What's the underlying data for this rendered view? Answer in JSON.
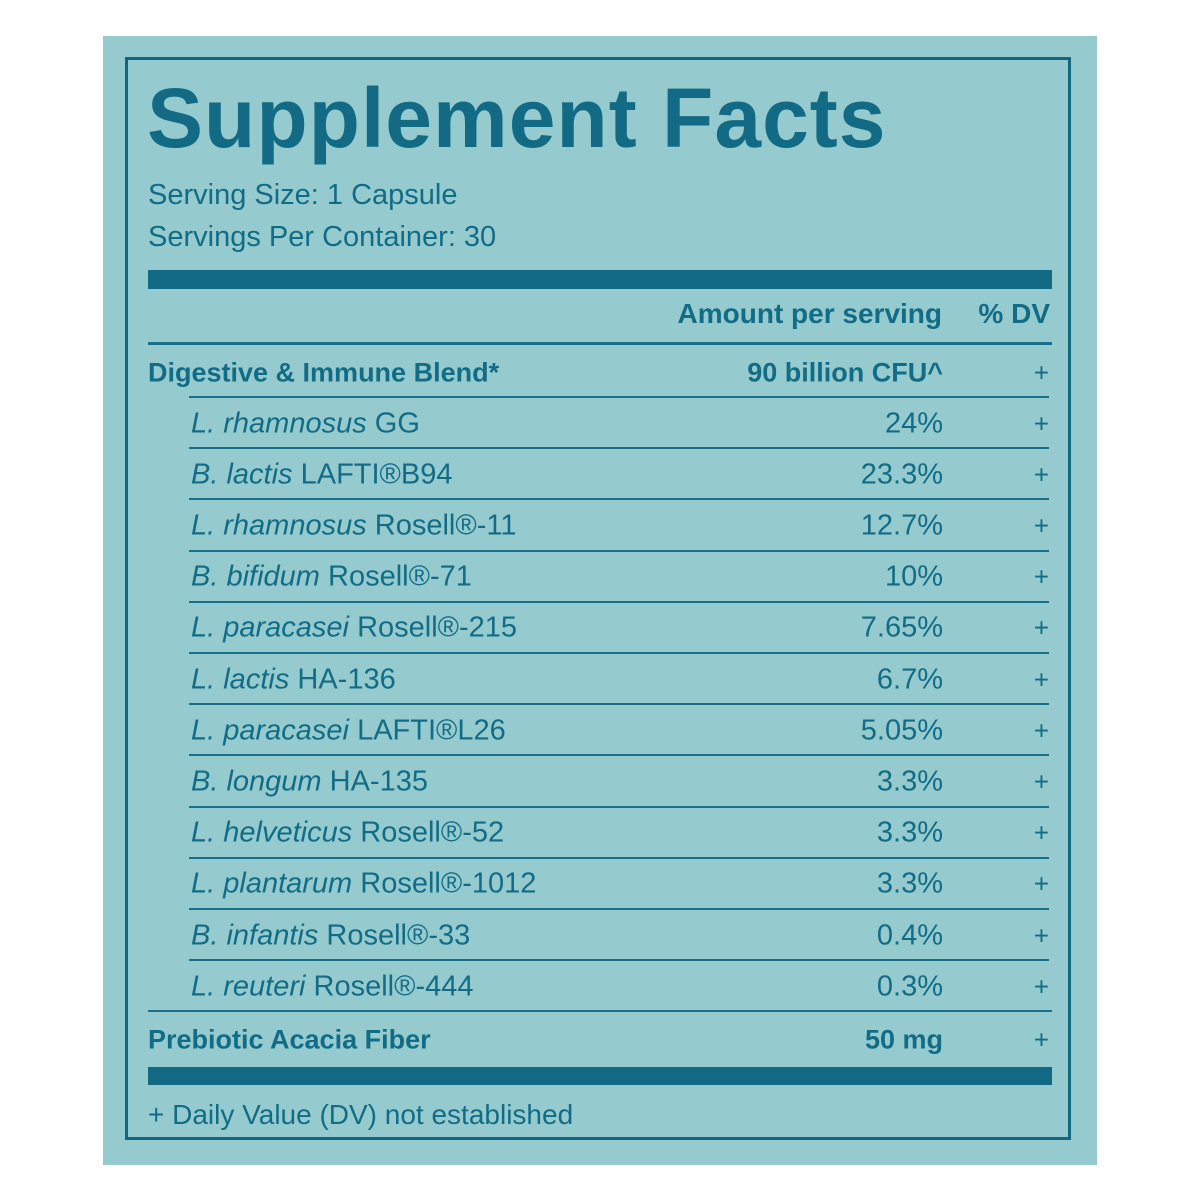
{
  "title": "Supplement Facts",
  "serving_size": "Serving Size: 1 Capsule",
  "servings_per_container": "Servings Per Container: 30",
  "columns": {
    "amount": "Amount per serving",
    "dv": "% DV"
  },
  "blend": {
    "name": "Digestive & Immune Blend*",
    "amount": "90 billion CFU^",
    "dv": "+"
  },
  "strains": [
    {
      "species": "L. rhamnosus",
      "strain": "GG",
      "amount": "24%",
      "dv": "+"
    },
    {
      "species": "B. lactis",
      "strain": "LAFTI®B94",
      "amount": "23.3%",
      "dv": "+"
    },
    {
      "species": "L. rhamnosus",
      "strain": "Rosell®-11",
      "amount": "12.7%",
      "dv": "+"
    },
    {
      "species": "B. bifidum",
      "strain": "Rosell®-71",
      "amount": "10%",
      "dv": "+"
    },
    {
      "species": "L. paracasei",
      "strain": "Rosell®-215",
      "amount": "7.65%",
      "dv": "+"
    },
    {
      "species": "L. lactis",
      "strain": "HA-136",
      "amount": "6.7%",
      "dv": "+"
    },
    {
      "species": "L. paracasei",
      "strain": "LAFTI®L26",
      "amount": "5.05%",
      "dv": "+"
    },
    {
      "species": "B. longum",
      "strain": "HA-135",
      "amount": "3.3%",
      "dv": "+"
    },
    {
      "species": "L. helveticus",
      "strain": "Rosell®-52",
      "amount": "3.3%",
      "dv": "+"
    },
    {
      "species": "L. plantarum",
      "strain": "Rosell®-1012",
      "amount": "3.3%",
      "dv": "+"
    },
    {
      "species": "B. infantis",
      "strain": "Rosell®-33",
      "amount": "0.4%",
      "dv": "+"
    },
    {
      "species": "L. reuteri",
      "strain": "Rosell®-444",
      "amount": "0.3%",
      "dv": "+"
    }
  ],
  "fiber": {
    "name": "Prebiotic Acacia Fiber",
    "amount": "50 mg",
    "dv": "+"
  },
  "footnote": "+ Daily Value (DV) not established",
  "colors": {
    "background": "#95cbce",
    "ink": "#126c86"
  }
}
